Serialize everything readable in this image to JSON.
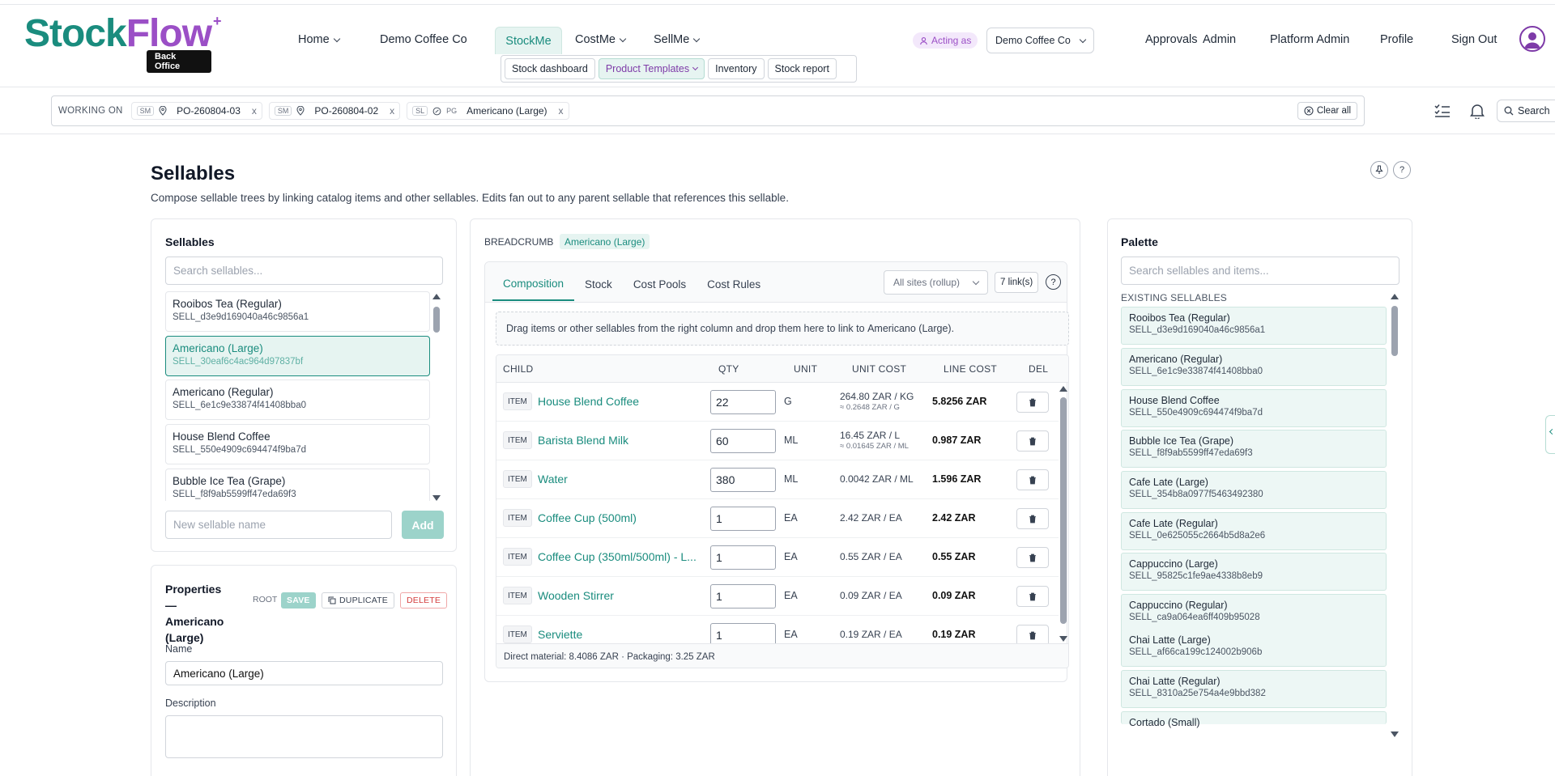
{
  "brand": {
    "word1": "Stock",
    "word2": "Flow",
    "plus": "+",
    "badge": "Back Office"
  },
  "nav": {
    "home": "Home",
    "company": "Demo Coffee Co",
    "stockme": "StockMe",
    "costme": "CostMe",
    "sellme": "SellMe",
    "acting_as": "Acting as",
    "acting_company": "Demo Coffee Co",
    "approvals": "Approvals",
    "admin": "Admin",
    "platform_admin": "Platform Admin",
    "profile": "Profile",
    "sign_out": "Sign Out"
  },
  "subnav": {
    "stock_dashboard": "Stock dashboard",
    "product_templates": "Product Templates",
    "inventory": "Inventory",
    "stock_report": "Stock report"
  },
  "working_on": {
    "label": "WORKING ON",
    "chips": [
      {
        "tag": "SM",
        "value": "PO-260804-03",
        "x": "x"
      },
      {
        "tag": "SM",
        "value": "PO-260804-02",
        "x": "x"
      },
      {
        "tag": "SL",
        "tag2": "PG",
        "value": "Americano (Large)",
        "x": "x"
      }
    ],
    "clear_all": "Clear all",
    "search": "Search"
  },
  "page": {
    "title": "Sellables",
    "subtitle": "Compose sellable trees by linking catalog items and other sellables. Edits fan out to any parent sellable that references this sellable."
  },
  "sellables": {
    "heading": "Sellables",
    "search_placeholder": "Search sellables...",
    "items": [
      {
        "name": "Rooibos Tea (Regular)",
        "code": "SELL_d3e9d169040a46c9856a1"
      },
      {
        "name": "Americano (Large)",
        "code": "SELL_30eaf6c4ac964d97837bf"
      },
      {
        "name": "Americano (Regular)",
        "code": "SELL_6e1c9e33874f41408bba0"
      },
      {
        "name": "House Blend Coffee",
        "code": "SELL_550e4909c694474f9ba7d"
      },
      {
        "name": "Bubble Ice Tea (Grape)",
        "code": "SELL_f8f9ab5599ff47eda69f3"
      }
    ],
    "new_placeholder": "New sellable name",
    "add": "Add"
  },
  "properties": {
    "heading": "Properties —",
    "heading_name": "Americano (Large)",
    "root": "ROOT",
    "save": "SAVE",
    "duplicate": "DUPLICATE",
    "delete": "DELETE",
    "name_label": "Name",
    "name_value": "Americano (Large)",
    "description_label": "Description",
    "description_value": ""
  },
  "composer": {
    "breadcrumb_label": "BREADCRUMB",
    "breadcrumb_value": "Americano (Large)",
    "tabs": [
      "Composition",
      "Stock",
      "Cost Pools",
      "Cost Rules"
    ],
    "site_select": "All sites (rollup)",
    "links": "7 link(s)",
    "drop_prefix": "Drag items or other sellables from the right column and drop them here to link to ",
    "drop_target": "Americano (Large)",
    "drop_suffix": ".",
    "columns": {
      "child": "CHILD",
      "qty": "QTY",
      "unit": "UNIT",
      "unit_cost": "UNIT COST",
      "line_cost": "LINE COST",
      "del": "DEL"
    },
    "rows": [
      {
        "type": "ITEM",
        "name": "House Blend Coffee",
        "qty": "22",
        "unit": "G",
        "unit_cost": "264.80 ZAR / KG",
        "unit_cost_sub": "≈ 0.2648 ZAR / G",
        "line_cost": "5.8256 ZAR"
      },
      {
        "type": "ITEM",
        "name": "Barista Blend Milk",
        "qty": "60",
        "unit": "ML",
        "unit_cost": "16.45 ZAR / L",
        "unit_cost_sub": "≈ 0.01645 ZAR / ML",
        "line_cost": "0.987 ZAR"
      },
      {
        "type": "ITEM",
        "name": "Water",
        "qty": "380",
        "unit": "ML",
        "unit_cost": "0.0042 ZAR / ML",
        "unit_cost_sub": "",
        "line_cost": "1.596 ZAR"
      },
      {
        "type": "ITEM",
        "name": "Coffee Cup (500ml)",
        "qty": "1",
        "unit": "EA",
        "unit_cost": "2.42 ZAR / EA",
        "unit_cost_sub": "",
        "line_cost": "2.42 ZAR"
      },
      {
        "type": "ITEM",
        "name": "Coffee Cup (350ml/500ml) - L...",
        "qty": "1",
        "unit": "EA",
        "unit_cost": "0.55 ZAR / EA",
        "unit_cost_sub": "",
        "line_cost": "0.55 ZAR"
      },
      {
        "type": "ITEM",
        "name": "Wooden Stirrer",
        "qty": "1",
        "unit": "EA",
        "unit_cost": "0.09 ZAR / EA",
        "unit_cost_sub": "",
        "line_cost": "0.09 ZAR"
      },
      {
        "type": "ITEM",
        "name": "Serviette",
        "qty": "1",
        "unit": "EA",
        "unit_cost": "0.19 ZAR / EA",
        "unit_cost_sub": "",
        "line_cost": "0.19 ZAR"
      }
    ],
    "footer": "Direct material: 8.4086 ZAR · Packaging: 3.25 ZAR"
  },
  "palette": {
    "heading": "Palette",
    "search_placeholder": "Search sellables and items...",
    "section": "EXISTING SELLABLES",
    "items": [
      {
        "name": "Rooibos Tea (Regular)",
        "code": "SELL_d3e9d169040a46c9856a1"
      },
      {
        "name": "Americano (Regular)",
        "code": "SELL_6e1c9e33874f41408bba0"
      },
      {
        "name": "House Blend Coffee",
        "code": "SELL_550e4909c694474f9ba7d"
      },
      {
        "name": "Bubble Ice Tea (Grape)",
        "code": "SELL_f8f9ab5599ff47eda69f3"
      },
      {
        "name": "Cafe Late (Large)",
        "code": "SELL_354b8a0977f5463492380"
      },
      {
        "name": "Cafe Late (Regular)",
        "code": "SELL_0e625055c2664b5d8a2e6"
      },
      {
        "name": "Cappuccino (Large)",
        "code": "SELL_95825c1fe9ae4338b8eb9"
      },
      {
        "name": "Cappuccino (Regular)",
        "code": "SELL_ca9a064ea6ff409b95028"
      },
      {
        "name": "Chai Latte (Large)",
        "code": "SELL_af66ca199c124002b906b"
      },
      {
        "name": "Chai Latte (Regular)",
        "code": "SELL_8310a25e754a4e9bbd382"
      },
      {
        "name": "Cortado (Small)",
        "code": ""
      }
    ]
  },
  "colors": {
    "brand_teal": "#1a8c7e",
    "brand_purple": "#9b4fc6",
    "selected_bg": "#e6f4f1"
  }
}
